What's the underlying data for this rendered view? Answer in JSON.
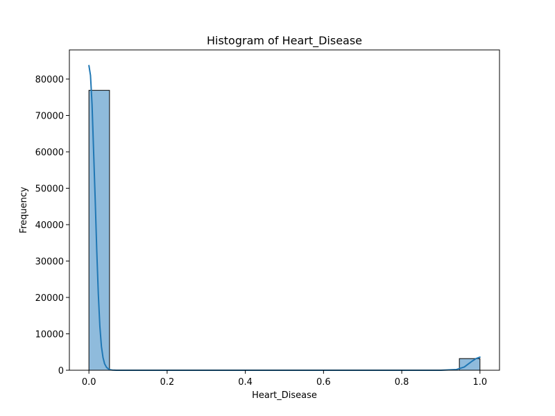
{
  "chart_data": {
    "type": "bar",
    "title": "Histogram of Heart_Disease",
    "xlabel": "Heart_Disease",
    "ylabel": "Frequency",
    "xlim": [
      -0.05,
      1.05
    ],
    "ylim": [
      0,
      88000
    ],
    "x_ticks": [
      0.0,
      0.2,
      0.4,
      0.6,
      0.8,
      1.0
    ],
    "x_tick_labels": [
      "0.0",
      "0.2",
      "0.4",
      "0.6",
      "0.8",
      "1.0"
    ],
    "y_ticks": [
      0,
      10000,
      20000,
      30000,
      40000,
      50000,
      60000,
      70000,
      80000
    ],
    "y_tick_labels": [
      "0",
      "10000",
      "20000",
      "30000",
      "40000",
      "50000",
      "60000",
      "70000",
      "80000"
    ],
    "bins": [
      {
        "x0": 0.0,
        "x1": 0.05263,
        "count": 76900
      },
      {
        "x0": 0.94737,
        "x1": 1.0,
        "count": 3200
      }
    ],
    "kde": {
      "x": [
        0.0,
        0.004,
        0.008,
        0.012,
        0.016,
        0.02,
        0.024,
        0.028,
        0.032,
        0.036,
        0.04,
        0.045,
        0.05,
        0.055,
        0.06,
        0.07,
        0.08,
        0.1,
        0.3,
        0.5,
        0.7,
        0.9,
        0.94,
        0.96,
        0.97,
        0.98,
        0.99,
        1.0
      ],
      "y": [
        83700,
        81000,
        73000,
        60000,
        47000,
        33000,
        21000,
        12000,
        6500,
        3500,
        1800,
        800,
        350,
        120,
        40,
        5,
        0,
        0,
        0,
        0,
        0,
        0,
        200,
        900,
        1700,
        2500,
        3200,
        3600
      ]
    },
    "bar_color": "#8fbbdc",
    "line_color": "#1f77b4",
    "grid": false,
    "legend": "none"
  }
}
